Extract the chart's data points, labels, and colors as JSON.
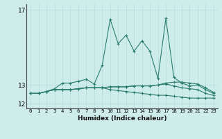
{
  "xlabel": "Humidex (Indice chaleur)",
  "x": [
    0,
    1,
    2,
    3,
    4,
    5,
    6,
    7,
    8,
    9,
    10,
    11,
    12,
    13,
    14,
    15,
    16,
    17,
    18,
    19,
    20,
    21,
    22,
    23
  ],
  "line_main": [
    12.55,
    12.55,
    12.65,
    12.8,
    13.1,
    13.1,
    13.2,
    13.3,
    13.05,
    14.05,
    16.5,
    15.2,
    15.65,
    14.8,
    15.35,
    14.8,
    13.35,
    16.55,
    13.4,
    13.1,
    12.95,
    13.0,
    12.75,
    12.55
  ],
  "line_upper": [
    12.55,
    12.55,
    12.65,
    12.75,
    12.75,
    12.75,
    12.8,
    12.85,
    12.85,
    12.85,
    12.9,
    12.9,
    12.9,
    12.95,
    12.95,
    12.95,
    13.0,
    13.1,
    13.15,
    13.15,
    13.1,
    13.05,
    12.85,
    12.6
  ],
  "line_mid": [
    12.55,
    12.55,
    12.65,
    12.75,
    12.75,
    12.75,
    12.8,
    12.85,
    12.85,
    12.85,
    12.9,
    12.9,
    12.9,
    12.95,
    12.95,
    12.95,
    13.0,
    13.05,
    12.95,
    12.85,
    12.8,
    12.75,
    12.55,
    12.45
  ],
  "line_lower": [
    12.55,
    12.55,
    12.65,
    12.75,
    12.75,
    12.75,
    12.8,
    12.85,
    12.85,
    12.85,
    12.75,
    12.7,
    12.65,
    12.6,
    12.55,
    12.5,
    12.45,
    12.45,
    12.4,
    12.35,
    12.3,
    12.3,
    12.3,
    12.3
  ],
  "color": "#2a7d6e",
  "bg_color": "#ceecea",
  "ylim": [
    11.75,
    17.3
  ],
  "ytick_positions": [
    12,
    13
  ],
  "ytick_top": 17,
  "grid_color": "#b8dedd"
}
